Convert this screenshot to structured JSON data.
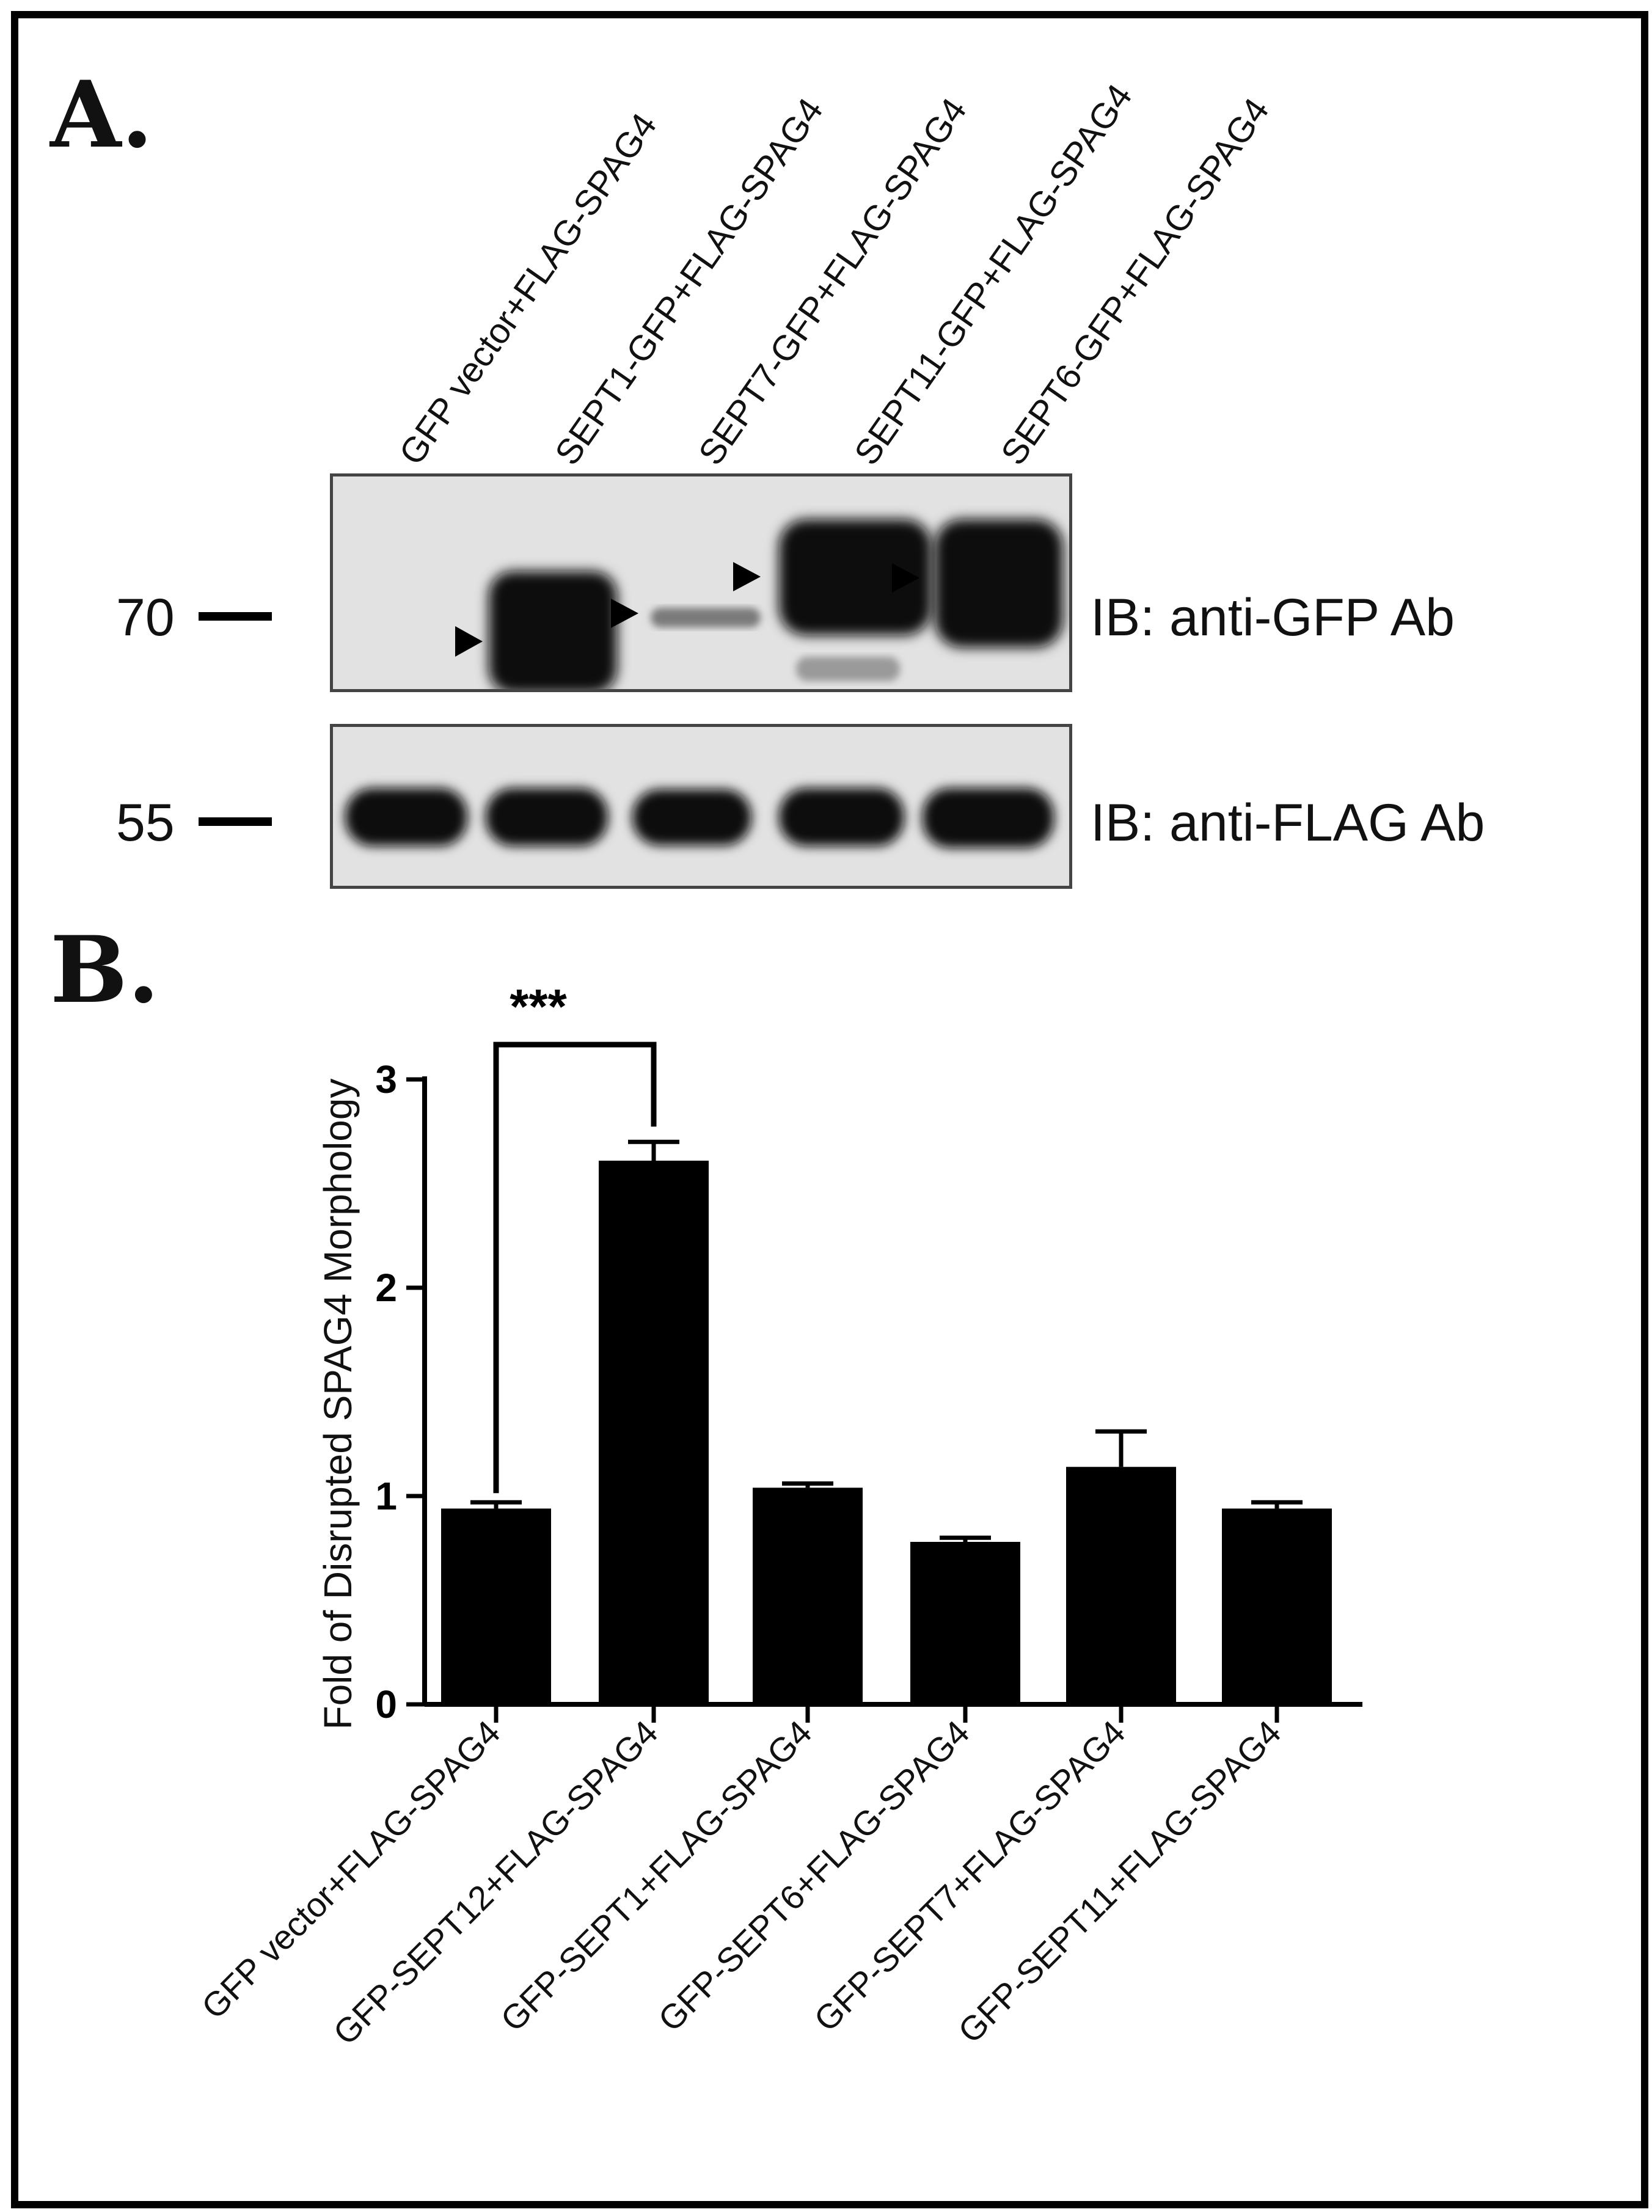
{
  "panelA": {
    "letter": "A.",
    "lanes": [
      "GFP vector+FLAG-SPAG4",
      "SEPT1-GFP+FLAG-SPAG4",
      "SEPT7-GFP+FLAG-SPAG4",
      "SEPT11-GFP+FLAG-SPAG4",
      "SEPT6-GFP+FLAG-SPAG4"
    ],
    "blot_top": {
      "marker": "70",
      "label": "IB: anti-GFP Ab"
    },
    "blot_bottom": {
      "marker": "55",
      "label": "IB: anti-FLAG Ab"
    }
  },
  "panelB": {
    "letter": "B.",
    "significance": "***"
  },
  "chart_data": {
    "type": "bar",
    "categories": [
      "GFP vector+FLAG-SPAG4",
      "GFP-SEPT12+FLAG-SPAG4",
      "GFP-SEPT1+FLAG-SPAG4",
      "GFP-SEPT6+FLAG-SPAG4",
      "GFP-SEPT7+FLAG-SPAG4",
      "GFP-SEPT11+FLAG-SPAG4"
    ],
    "values": [
      0.94,
      2.61,
      1.04,
      0.78,
      1.14,
      0.94
    ],
    "errors": [
      0.03,
      0.09,
      0.02,
      0.02,
      0.17,
      0.03
    ],
    "ylabel": "Fold of Disrupted SPAG4 Morphology",
    "ylim": [
      0,
      3
    ],
    "yticks": [
      "0",
      "1",
      "2",
      "3"
    ],
    "bar_color": "#000000",
    "grid": false
  }
}
